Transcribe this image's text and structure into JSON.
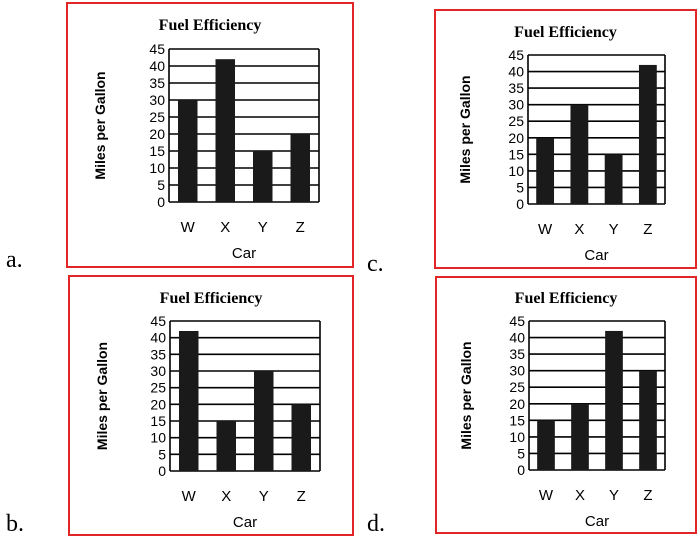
{
  "labels": {
    "a": "a.",
    "b": "b.",
    "c": "c.",
    "d": "d."
  },
  "colors": {
    "border": "#e02626",
    "bar": "#1a1a1a",
    "grid": "#000000"
  },
  "chart_data": [
    {
      "id": "a",
      "type": "bar",
      "title": "Fuel Efficiency",
      "xlabel": "Car",
      "ylabel": "Miles per Gallon",
      "categories": [
        "W",
        "X",
        "Y",
        "Z"
      ],
      "values": [
        30,
        42,
        15,
        20
      ],
      "yticks": [
        "0",
        "5",
        "10",
        "15",
        "20",
        "25",
        "30",
        "35",
        "40",
        "45"
      ],
      "ylim": [
        0,
        45
      ],
      "grid": true
    },
    {
      "id": "b",
      "type": "bar",
      "title": "Fuel Efficiency",
      "xlabel": "Car",
      "ylabel": "Miles per Gallon",
      "categories": [
        "W",
        "X",
        "Y",
        "Z"
      ],
      "values": [
        42,
        15,
        30,
        20
      ],
      "yticks": [
        "0",
        "5",
        "10",
        "15",
        "20",
        "25",
        "30",
        "35",
        "40",
        "45"
      ],
      "ylim": [
        0,
        45
      ],
      "grid": true
    },
    {
      "id": "c",
      "type": "bar",
      "title": "Fuel Efficiency",
      "xlabel": "Car",
      "ylabel": "Miles per Gallon",
      "categories": [
        "W",
        "X",
        "Y",
        "Z"
      ],
      "values": [
        20,
        30,
        15,
        42
      ],
      "yticks": [
        "0",
        "5",
        "10",
        "15",
        "20",
        "25",
        "30",
        "35",
        "40",
        "45"
      ],
      "ylim": [
        0,
        45
      ],
      "grid": true
    },
    {
      "id": "d",
      "type": "bar",
      "title": "Fuel Efficiency",
      "xlabel": "Car",
      "ylabel": "Miles per Gallon",
      "categories": [
        "W",
        "X",
        "Y",
        "Z"
      ],
      "values": [
        15,
        20,
        42,
        30
      ],
      "yticks": [
        "0",
        "5",
        "10",
        "15",
        "20",
        "25",
        "30",
        "35",
        "40",
        "45"
      ],
      "ylim": [
        0,
        45
      ],
      "grid": true
    }
  ]
}
